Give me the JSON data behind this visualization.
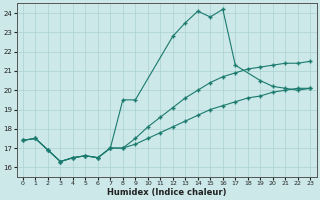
{
  "xlabel": "Humidex (Indice chaleur)",
  "bg_color": "#cce8e8",
  "grid_color": "#b0d4d4",
  "line_color": "#1a7a6e",
  "xlim": [
    -0.5,
    23.5
  ],
  "ylim": [
    15.5,
    24.5
  ],
  "xticks": [
    0,
    1,
    2,
    3,
    4,
    5,
    6,
    7,
    8,
    9,
    10,
    11,
    12,
    13,
    14,
    15,
    16,
    17,
    18,
    19,
    20,
    21,
    22,
    23
  ],
  "yticks": [
    16,
    17,
    18,
    19,
    20,
    21,
    22,
    23,
    24
  ],
  "line1_x": [
    0,
    1,
    2,
    3,
    4,
    5,
    6,
    7,
    8,
    9,
    12,
    13,
    14,
    15,
    16,
    17,
    19,
    20,
    21,
    22,
    23
  ],
  "line1_y": [
    17.4,
    17.5,
    16.9,
    16.3,
    16.5,
    16.6,
    16.5,
    17.0,
    19.5,
    19.5,
    22.8,
    23.5,
    24.1,
    23.8,
    24.2,
    21.3,
    20.5,
    20.2,
    20.1,
    20.0,
    20.1
  ],
  "line2_x": [
    0,
    1,
    2,
    3,
    4,
    5,
    6,
    7,
    8,
    9,
    10,
    11,
    12,
    13,
    14,
    15,
    16,
    17,
    18,
    19,
    20,
    21,
    22,
    23
  ],
  "line2_y": [
    17.4,
    17.5,
    16.9,
    16.3,
    16.5,
    16.6,
    16.5,
    17.0,
    17.0,
    17.5,
    18.1,
    18.6,
    19.1,
    19.6,
    20.0,
    20.4,
    20.7,
    20.9,
    21.1,
    21.2,
    21.3,
    21.4,
    21.4,
    21.5
  ],
  "line3_x": [
    0,
    1,
    2,
    3,
    4,
    5,
    6,
    7,
    8,
    9,
    10,
    11,
    12,
    13,
    14,
    15,
    16,
    17,
    18,
    19,
    20,
    21,
    22,
    23
  ],
  "line3_y": [
    17.4,
    17.5,
    16.9,
    16.3,
    16.5,
    16.6,
    16.5,
    17.0,
    17.0,
    17.2,
    17.5,
    17.8,
    18.1,
    18.4,
    18.7,
    19.0,
    19.2,
    19.4,
    19.6,
    19.7,
    19.9,
    20.0,
    20.1,
    20.1
  ]
}
